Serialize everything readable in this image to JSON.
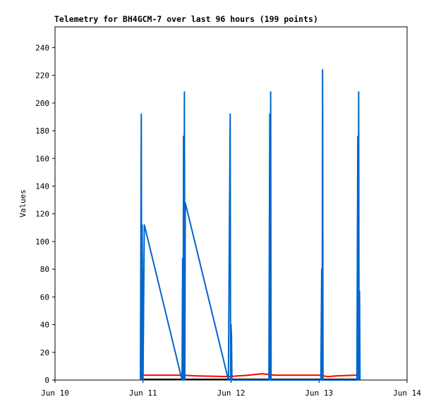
{
  "chart_data": {
    "type": "line",
    "title": "Telemetry for BH4GCM-7 over last 96 hours (199 points)",
    "y_label": "Values",
    "xlim": [
      10,
      14
    ],
    "xticks": [
      {
        "value": 10,
        "label": "Jun 10"
      },
      {
        "value": 11,
        "label": "Jun 11"
      },
      {
        "value": 12,
        "label": "Jun 12"
      },
      {
        "value": 13,
        "label": "Jun 13"
      },
      {
        "value": 14,
        "label": "Jun 14"
      }
    ],
    "ylim": [
      0,
      255
    ],
    "yticks": [
      0,
      20,
      40,
      60,
      80,
      100,
      120,
      140,
      160,
      180,
      200,
      220,
      240
    ],
    "grid": false,
    "series": [
      {
        "color": "#000000",
        "x": [
          11.0,
          13.47
        ],
        "values": [
          0.5,
          0.5
        ]
      },
      {
        "color": "#ff0000",
        "x": [
          11.0,
          11.45,
          11.6,
          11.97,
          12.2,
          12.35,
          12.5,
          13.0,
          13.1,
          13.2,
          13.4,
          13.47
        ],
        "values": [
          3.5,
          3.5,
          3,
          2.5,
          3.5,
          4.5,
          3.5,
          3.5,
          2.5,
          3,
          3.5,
          3.5
        ]
      },
      {
        "color": "#0066cc",
        "x": [
          10.97,
          10.98,
          10.985,
          10.99,
          11.0,
          11.01,
          11.015,
          11.443,
          11.45,
          11.455,
          11.46,
          11.465,
          11.47,
          11.475,
          11.48,
          11.97,
          11.99,
          11.995,
          12.0,
          12.005,
          12.01,
          12.43,
          12.44,
          12.445,
          12.45,
          12.455,
          13.02,
          13.03,
          13.035,
          13.04,
          13.045,
          13.43,
          13.44,
          13.445,
          13.45,
          13.455,
          13.46,
          13.465
        ],
        "values": [
          0,
          192,
          0,
          112,
          0,
          80,
          112,
          0,
          88,
          0,
          176,
          0,
          208,
          0,
          128,
          0,
          192,
          0,
          40,
          32,
          0,
          0,
          192,
          0,
          208,
          0,
          0,
          80,
          0,
          224,
          0,
          0,
          176,
          0,
          208,
          0,
          64,
          0
        ]
      }
    ]
  }
}
